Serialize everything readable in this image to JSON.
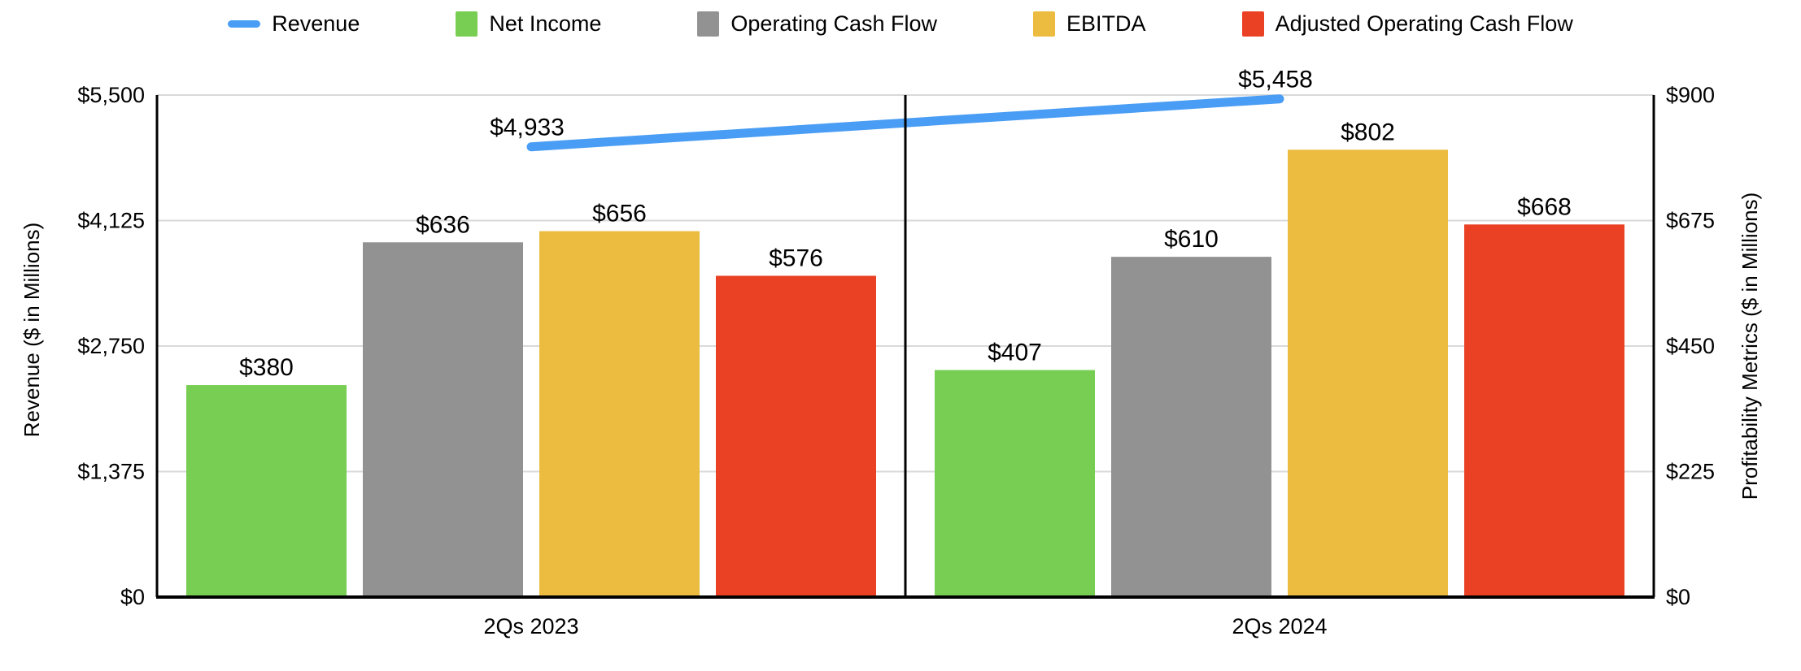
{
  "legend": {
    "items": [
      {
        "label": "Revenue",
        "marker": "line",
        "color": "#4A9DF4"
      },
      {
        "label": "Net Income",
        "marker": "square",
        "color": "#77CE52"
      },
      {
        "label": "Operating Cash Flow",
        "marker": "square",
        "color": "#929292"
      },
      {
        "label": "EBITDA",
        "marker": "square",
        "color": "#EBBC40"
      },
      {
        "label": "Adjusted Operating Cash Flow",
        "marker": "square",
        "color": "#EA4125"
      }
    ]
  },
  "chart_data": {
    "type": "bar+line",
    "categories": [
      "2Qs 2023",
      "2Qs 2024"
    ],
    "line_series": {
      "name": "Revenue",
      "axis": "left",
      "color": "#4A9DF4",
      "values": [
        4933,
        5458
      ],
      "labels": [
        "$4,933",
        "$5,458"
      ]
    },
    "series": [
      {
        "name": "Net Income",
        "color": "#77CE52",
        "values": [
          380,
          407
        ],
        "labels": [
          "$380",
          "$407"
        ]
      },
      {
        "name": "Operating Cash Flow",
        "color": "#929292",
        "values": [
          636,
          610
        ],
        "labels": [
          "$636",
          "$610"
        ]
      },
      {
        "name": "EBITDA",
        "color": "#EBBC40",
        "values": [
          656,
          802
        ],
        "labels": [
          "$656",
          "$802"
        ]
      },
      {
        "name": "Adjusted Operating Cash Flow",
        "color": "#EA4125",
        "values": [
          576,
          668
        ],
        "labels": [
          "$576",
          "$668"
        ]
      }
    ],
    "left_axis": {
      "title": "Revenue ($ in Millions)",
      "range": [
        0,
        5500
      ],
      "tick_values": [
        0,
        1375,
        2750,
        4125,
        5500
      ],
      "tick_labels": [
        "$0",
        "$1,375",
        "$2,750",
        "$4,125",
        "$5,500"
      ]
    },
    "right_axis": {
      "title": "Profitability Metrics ($ in Millions)",
      "range": [
        0,
        900
      ],
      "tick_values": [
        0,
        225,
        450,
        675,
        900
      ],
      "tick_labels": [
        "$0",
        "$225",
        "$450",
        "$675",
        "$900"
      ]
    },
    "grid": true,
    "legend_position": "top",
    "colors": {
      "gridline": "#D9D9D9",
      "axis_line": "#000000",
      "text": "#000000",
      "background": "#FFFFFF"
    }
  }
}
